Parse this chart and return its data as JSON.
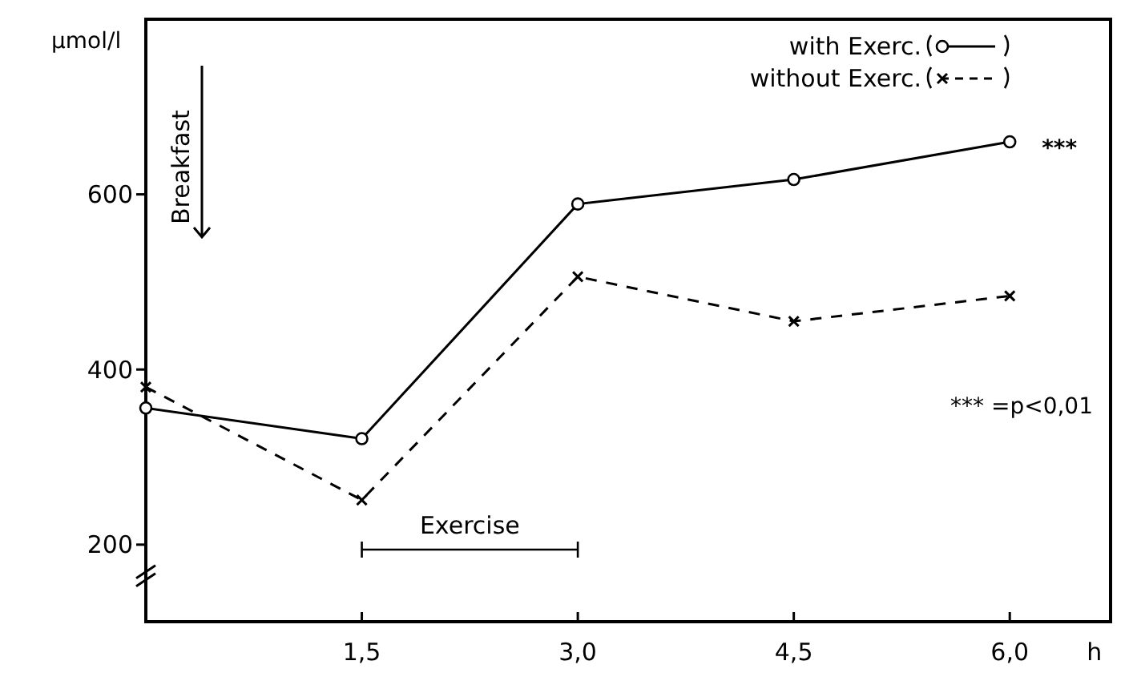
{
  "chart_data": {
    "type": "line",
    "ylabel": "µmol/l",
    "xlabel": "h",
    "x": [
      0,
      1.5,
      3,
      4.5,
      6
    ],
    "xlim": [
      0,
      6.7
    ],
    "ylim": [
      112,
      800
    ],
    "xticks": [
      {
        "value": 1.5,
        "label": "1,5"
      },
      {
        "value": 3,
        "label": "3,0"
      },
      {
        "value": 4.5,
        "label": "4,5"
      },
      {
        "value": 6,
        "label": "6,0"
      }
    ],
    "yticks": [
      200,
      400,
      600
    ],
    "grid": false,
    "legend": "top right",
    "series": [
      {
        "name": "with Exerc.",
        "color": "#000000",
        "values": [
          356,
          321,
          589,
          617,
          660
        ],
        "marker": "circle",
        "line_style": "solid"
      },
      {
        "name": "without Exerc.",
        "color": "#000000",
        "values": [
          380,
          251,
          506,
          455,
          484
        ],
        "marker": "cross",
        "line_style": "dashed"
      }
    ],
    "annotations": [
      "Breakfast",
      "Exercise",
      {
        "text": "***",
        "x": 6,
        "y": 660
      },
      "*** =p<0,01"
    ]
  }
}
